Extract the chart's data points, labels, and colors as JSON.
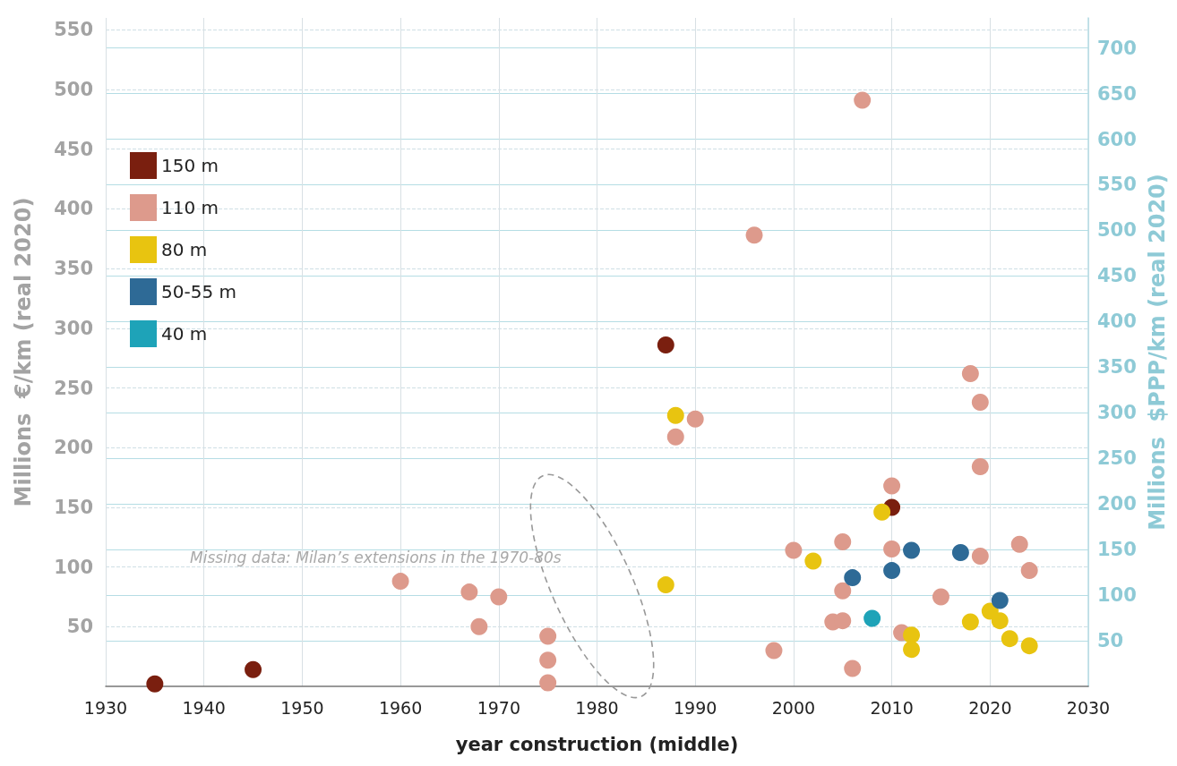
{
  "chart_data": {
    "type": "scatter",
    "xlabel": "year construction (middle)",
    "ylabel": "Millions  €/km (real 2020)",
    "y2label": "Millions  $PPP/km (real 2020)",
    "annotations": [
      "Missing data: Milan’s extensions in the 1970-80s"
    ],
    "xlim": [
      1930,
      2030
    ],
    "xticks": [
      1930,
      1940,
      1950,
      1960,
      1970,
      1980,
      1990,
      2000,
      2010,
      2020,
      2030
    ],
    "ylim": [
      0,
      560
    ],
    "yticks": [
      50,
      100,
      150,
      200,
      250,
      300,
      350,
      400,
      450,
      500,
      550
    ],
    "y2lim": [
      0,
      733
    ],
    "y2ticks": [
      50,
      100,
      150,
      200,
      250,
      300,
      350,
      400,
      450,
      500,
      550,
      600,
      650,
      700
    ],
    "grid": true,
    "legend": "top left",
    "marker": "circle",
    "series": [
      {
        "name": "150 m",
        "color": "#7a1f0f",
        "x": [
          1935,
          1945,
          1987,
          2010
        ],
        "values": [
          2,
          14,
          286,
          150
        ]
      },
      {
        "name": "110 m",
        "color": "#dd9a8c",
        "x": [
          1960,
          1967,
          1968,
          1970,
          1975,
          1975,
          1975,
          1988,
          1990,
          1996,
          1998,
          2000,
          2004,
          2005,
          2005,
          2005,
          2006,
          2007,
          2010,
          2010,
          2011,
          2015,
          2018,
          2019,
          2019,
          2019,
          2023,
          2024
        ],
        "values": [
          88,
          79,
          50,
          75,
          42,
          22,
          3,
          209,
          224,
          378,
          30,
          114,
          54,
          55,
          80,
          121,
          15,
          491,
          168,
          115,
          45,
          75,
          262,
          238,
          184,
          109,
          119,
          97
        ]
      },
      {
        "name": "80 m",
        "color": "#e8c410",
        "x": [
          1987,
          1988,
          2002,
          2009,
          2012,
          2012,
          2018,
          2020,
          2021,
          2022,
          2024
        ],
        "values": [
          85,
          227,
          105,
          146,
          43,
          31,
          54,
          63,
          55,
          40,
          34
        ]
      },
      {
        "name": "50-55 m",
        "color": "#2e6a96",
        "x": [
          2006,
          2010,
          2012,
          2017,
          2021
        ],
        "values": [
          91,
          97,
          114,
          112,
          72
        ]
      },
      {
        "name": "40 m",
        "color": "#1ea3b8",
        "x": [
          2008
        ],
        "values": [
          57
        ]
      }
    ]
  }
}
